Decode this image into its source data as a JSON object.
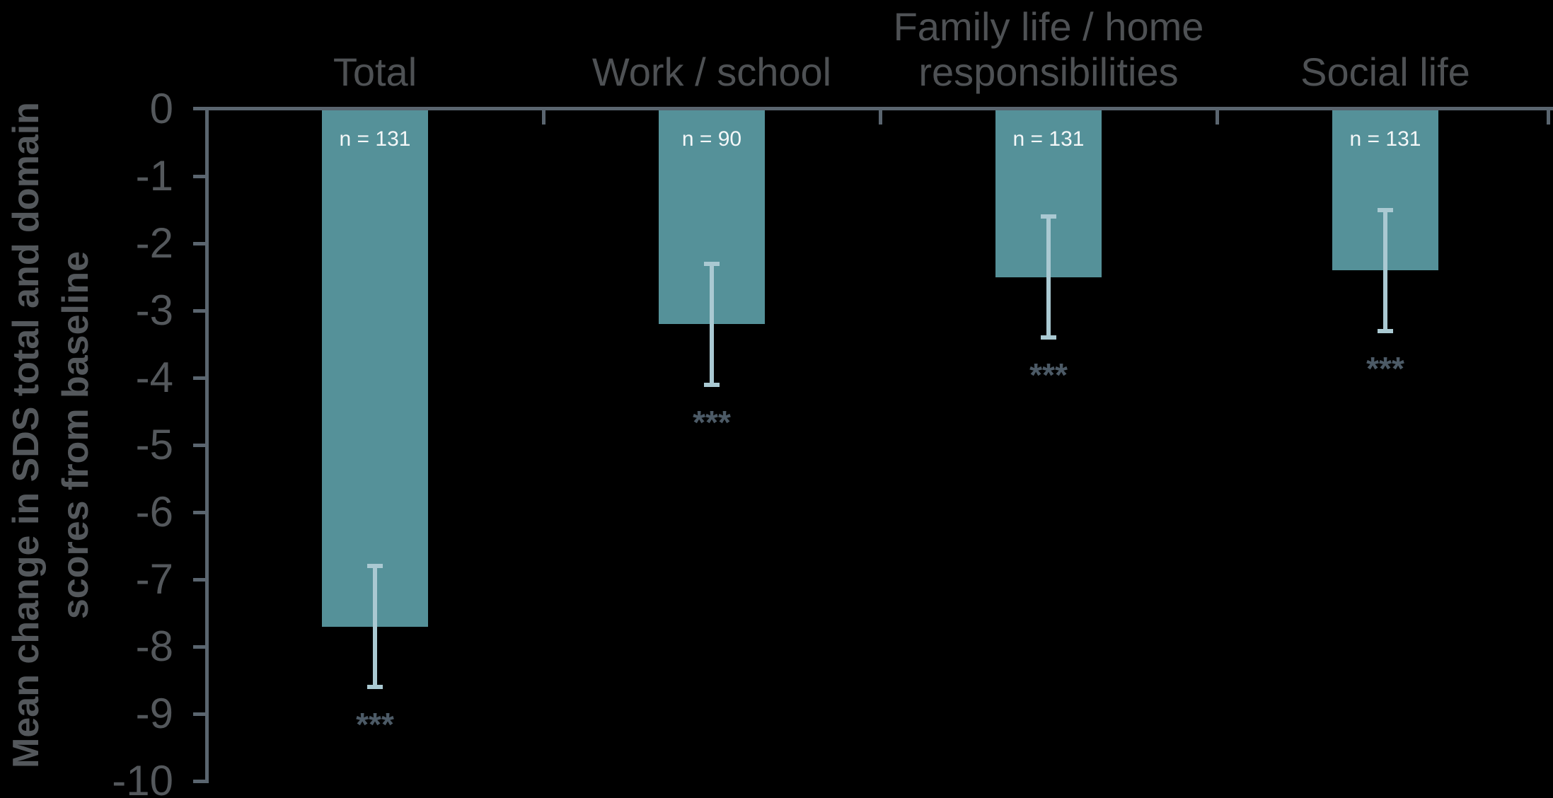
{
  "colors": {
    "background": "#000000",
    "bar_fill": "#559199",
    "error_bar": "#aac9d2",
    "axis_line": "#5a656f",
    "tick_label": "#54585c",
    "column_header": "#4e5154",
    "y_axis_title": "#54585c",
    "n_label": "#f4f7f8",
    "significance": "#4c5a66"
  },
  "chart_data": {
    "type": "bar",
    "title": "",
    "ylabel": "Mean change in SDS total and domain scores from baseline",
    "ylabel_lines": [
      "Mean change in SDS total and domain",
      "scores from baseline"
    ],
    "xlabel": "",
    "categories": [
      "Total",
      "Work / school",
      "Family life / home\nresponsibilities",
      "Social life"
    ],
    "series": [
      {
        "name": "Mean change in SDS score from baseline",
        "values": [
          -7.7,
          -3.2,
          -2.5,
          -2.4
        ],
        "error_upper": [
          -6.8,
          -2.3,
          -1.6,
          -1.5
        ],
        "error_lower": [
          -8.6,
          -4.1,
          -3.4,
          -3.3
        ],
        "n_values": [
          131,
          90,
          131,
          131
        ],
        "n_labels": [
          "n = 131",
          "n = 90",
          "n = 131",
          "n = 131"
        ],
        "significance": [
          "***",
          "***",
          "***",
          "***"
        ]
      }
    ],
    "ylim": [
      -10,
      0
    ],
    "yticks": [
      0,
      -1,
      -2,
      -3,
      -4,
      -5,
      -6,
      -7,
      -8,
      -9,
      -10
    ],
    "grid": false,
    "legend": false,
    "bar_orientation": "vertical-negative"
  }
}
